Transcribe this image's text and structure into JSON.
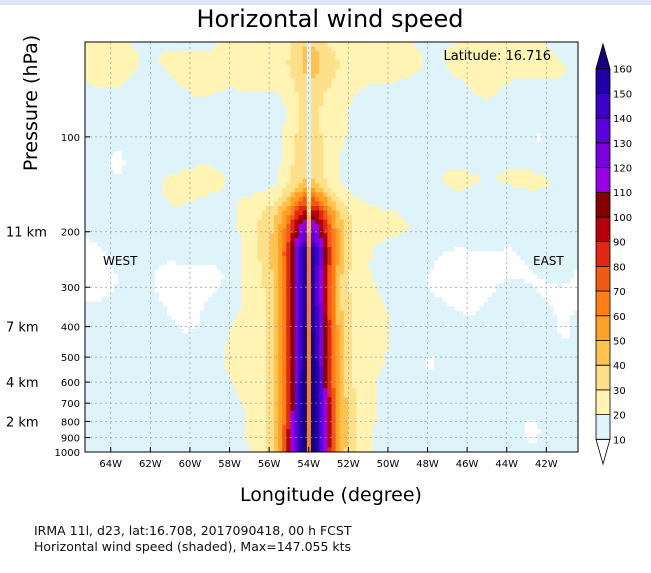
{
  "chart_data": {
    "type": "heatmap",
    "title": "Horizontal wind speed",
    "xlabel": "Longitude (degree)",
    "ylabel": "Pressure (hPa)",
    "annotation_latitude": "Latitude: 16.716",
    "west_label": "WEST",
    "east_label": "EAST",
    "x_ticks": [
      {
        "value": -64,
        "label": "64W"
      },
      {
        "value": -62,
        "label": "62W"
      },
      {
        "value": -60,
        "label": "60W"
      },
      {
        "value": -58,
        "label": "58W"
      },
      {
        "value": -56,
        "label": "56W"
      },
      {
        "value": -54,
        "label": "54W"
      },
      {
        "value": -52,
        "label": "52W"
      },
      {
        "value": -50,
        "label": "50W"
      },
      {
        "value": -48,
        "label": "48W"
      },
      {
        "value": -46,
        "label": "46W"
      },
      {
        "value": -44,
        "label": "44W"
      },
      {
        "value": -42,
        "label": "42W"
      }
    ],
    "xlim": [
      -65.3,
      -40.4
    ],
    "y_ticks": [
      {
        "value": 100,
        "label": "100"
      },
      {
        "value": 200,
        "label": "200"
      },
      {
        "value": 300,
        "label": "300"
      },
      {
        "value": 400,
        "label": "400"
      },
      {
        "value": 500,
        "label": "500"
      },
      {
        "value": 600,
        "label": "600"
      },
      {
        "value": 700,
        "label": "700"
      },
      {
        "value": 800,
        "label": "800"
      },
      {
        "value": 900,
        "label": "900"
      },
      {
        "value": 1000,
        "label": "1000"
      }
    ],
    "ylim": [
      50,
      1000
    ],
    "y_scale": "log",
    "height_labels": [
      {
        "pressure": 200,
        "label": "11 km"
      },
      {
        "pressure": 400,
        "label": "7 km"
      },
      {
        "pressure": 600,
        "label": "4 km"
      },
      {
        "pressure": 800,
        "label": "2 km"
      }
    ],
    "grid": true,
    "colorbar": {
      "levels": [
        10,
        20,
        30,
        40,
        50,
        60,
        70,
        80,
        90,
        100,
        110,
        120,
        130,
        140,
        150,
        160
      ],
      "colors": [
        "#ffffff",
        "#dff3fb",
        "#fff4b3",
        "#ffe08a",
        "#ffc24d",
        "#ffa126",
        "#ff7f14",
        "#f25a14",
        "#e02814",
        "#b8000a",
        "#870000",
        "#9a00e8",
        "#7a00e0",
        "#5a00dc",
        "#3c00c8",
        "#2200a8",
        "#140080"
      ]
    },
    "features": {
      "core_longitude": -54.0,
      "core_halfwidth_deg": 0.45,
      "max_value": 147.055
    }
  },
  "caption": {
    "line1": "IRMA 11l, d23, lat:16.708, 2017090418, 00 h FCST",
    "line2": "Horizontal wind speed (shaded), Max=147.055 kts"
  }
}
